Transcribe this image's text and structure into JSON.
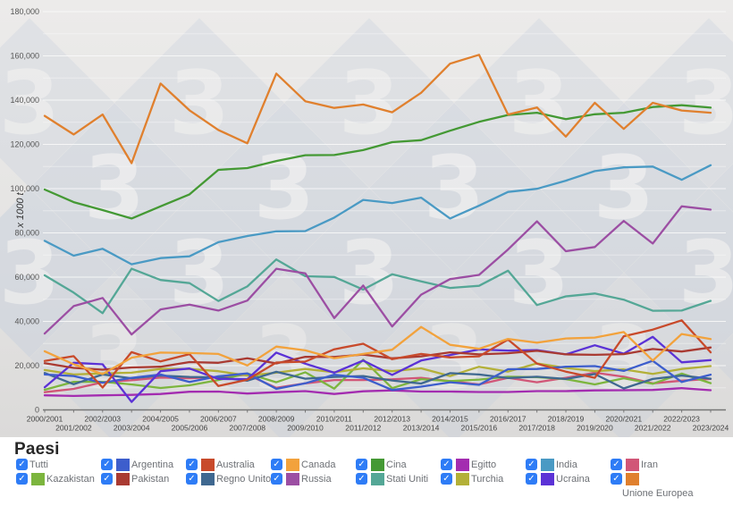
{
  "legend": {
    "title": "Paesi",
    "checkbox_color": "#2e7cf6",
    "checkmark": "✓",
    "items": [
      {
        "label": "Tutti",
        "checked": true,
        "has_swatch": false
      },
      {
        "label": "Kazakistan",
        "checked": true,
        "has_swatch": true
      },
      {
        "label": "Argentina",
        "checked": true,
        "has_swatch": true
      },
      {
        "label": "Pakistan",
        "checked": true,
        "has_swatch": true
      },
      {
        "label": "Australia",
        "checked": true,
        "has_swatch": true
      },
      {
        "label": "Regno Unito",
        "checked": true,
        "has_swatch": true
      },
      {
        "label": "Canada",
        "checked": true,
        "has_swatch": true
      },
      {
        "label": "Russia",
        "checked": true,
        "has_swatch": true
      },
      {
        "label": "Cina",
        "checked": true,
        "has_swatch": true
      },
      {
        "label": "Stati Uniti",
        "checked": true,
        "has_swatch": true
      },
      {
        "label": "Egitto",
        "checked": true,
        "has_swatch": true
      },
      {
        "label": "Turchia",
        "checked": true,
        "has_swatch": true
      },
      {
        "label": "India",
        "checked": true,
        "has_swatch": true
      },
      {
        "label": "Ucraina",
        "checked": true,
        "has_swatch": true
      },
      {
        "label": "Iran",
        "checked": true,
        "has_swatch": true
      },
      {
        "label": "Unione Europea",
        "checked": true,
        "has_swatch": true,
        "label_below": true
      }
    ]
  },
  "chart_data": {
    "type": "line",
    "title": "",
    "ylabel": "x 1000 t",
    "xlabel": "",
    "ylim": [
      0,
      180000
    ],
    "y_tick_step": 20000,
    "minor_grid_step": 10000,
    "grid": true,
    "legend_position": "bottom",
    "watermark_text": "3",
    "categories": [
      "2000/2001",
      "2001/2002",
      "2002/2003",
      "2003/2004",
      "2004/2005",
      "2005/2006",
      "2006/2007",
      "2007/2008",
      "2008/2009",
      "2009/2010",
      "2010/2011",
      "2011/2012",
      "2012/2013",
      "2013/2014",
      "2014/2015",
      "2015/2016",
      "2016/2017",
      "2017/2018",
      "2018/2019",
      "2019/2020",
      "2020/2021",
      "2021/2022",
      "2022/2023",
      "2023/2024"
    ],
    "series": [
      {
        "name": "Egitto",
        "color": "#a32cb0",
        "values": [
          6600,
          6300,
          6600,
          6800,
          7200,
          8200,
          8300,
          7400,
          8000,
          8500,
          7200,
          8400,
          8800,
          8300,
          8300,
          8100,
          8100,
          8500,
          8500,
          8800,
          8900,
          9000,
          9800,
          8900
        ]
      },
      {
        "name": "Iran",
        "color": "#d15677",
        "values": [
          8000,
          9500,
          12500,
          13400,
          14600,
          14300,
          14800,
          15900,
          10000,
          12000,
          13500,
          13500,
          13800,
          14500,
          13000,
          11500,
          14500,
          12500,
          14500,
          16800,
          15000,
          12000,
          13200,
          14000
        ]
      },
      {
        "name": "Kazakistan",
        "color": "#7cb53e",
        "values": [
          9100,
          12700,
          12700,
          11500,
          9900,
          11100,
          13500,
          16500,
          12500,
          17000,
          9600,
          22700,
          9800,
          13900,
          13000,
          13700,
          15000,
          14800,
          13900,
          11500,
          14300,
          11800,
          16400,
          12100
        ]
      },
      {
        "name": "Turchia",
        "color": "#b3b038",
        "values": [
          18000,
          16000,
          16500,
          16800,
          18500,
          18500,
          17500,
          15500,
          16800,
          18500,
          17000,
          18800,
          17500,
          18800,
          15300,
          19500,
          17300,
          21000,
          19000,
          17500,
          18300,
          16300,
          18500,
          19800
        ]
      },
      {
        "name": "Regno Unito",
        "color": "#3f6890",
        "values": [
          16700,
          11600,
          16000,
          14300,
          15500,
          14900,
          14700,
          13200,
          17200,
          14100,
          14900,
          15300,
          13300,
          11900,
          16600,
          16000,
          14400,
          15000,
          14000,
          16200,
          9700,
          14000,
          15500,
          14100
        ]
      },
      {
        "name": "Argentina",
        "color": "#3d5ecc",
        "values": [
          16000,
          15300,
          12300,
          14500,
          16000,
          12600,
          15200,
          16500,
          9500,
          12000,
          15900,
          14500,
          9000,
          10500,
          12500,
          11300,
          18400,
          18500,
          19500,
          19800,
          17600,
          22200,
          12600,
          15900
        ]
      },
      {
        "name": "Ucraina",
        "color": "#5b32d6",
        "values": [
          10200,
          21300,
          20600,
          3600,
          17500,
          18700,
          14000,
          13900,
          25900,
          20900,
          16800,
          22300,
          15800,
          22300,
          24800,
          27300,
          26800,
          27000,
          25100,
          29200,
          25400,
          33000,
          21500,
          22500
        ]
      },
      {
        "name": "Pakistan",
        "color": "#a93a32",
        "values": [
          21100,
          19000,
          18200,
          19200,
          19500,
          21600,
          21300,
          23300,
          21000,
          24000,
          23900,
          25000,
          23300,
          24200,
          26000,
          25100,
          25600,
          26700,
          25100,
          24900,
          25200,
          27500,
          26400,
          28200
        ]
      },
      {
        "name": "Australia",
        "color": "#c84a2b",
        "values": [
          22100,
          24300,
          10100,
          26100,
          21900,
          25200,
          10800,
          13600,
          21400,
          21800,
          27400,
          29900,
          22900,
          25300,
          23700,
          24200,
          31800,
          20900,
          17300,
          14500,
          33300,
          36300,
          40500,
          26000
        ]
      },
      {
        "name": "Canada",
        "color": "#f2a23c",
        "values": [
          26500,
          20600,
          16200,
          23600,
          25900,
          25700,
          25300,
          20100,
          28600,
          26900,
          23300,
          25300,
          27200,
          37500,
          29400,
          27600,
          32100,
          30400,
          32300,
          32700,
          35200,
          22300,
          34300,
          32000
        ]
      },
      {
        "name": "Stati Uniti",
        "color": "#54a796",
        "values": [
          60800,
          53000,
          43700,
          63800,
          58700,
          57300,
          49200,
          55800,
          68000,
          60400,
          60100,
          54400,
          61300,
          58100,
          55100,
          56100,
          62900,
          47400,
          51300,
          52600,
          49800,
          44800,
          44900,
          49300
        ]
      },
      {
        "name": "Russia",
        "color": "#9c4ea3",
        "values": [
          34500,
          46900,
          50600,
          34100,
          45400,
          47600,
          44900,
          49400,
          63800,
          61700,
          41500,
          56200,
          37700,
          52100,
          59100,
          61000,
          72500,
          85200,
          71700,
          73600,
          85400,
          75200,
          92000,
          90500
        ]
      },
      {
        "name": "India",
        "color": "#4a9ac4",
        "values": [
          76400,
          69700,
          72800,
          65800,
          68600,
          69400,
          75800,
          78600,
          80700,
          80800,
          86900,
          94900,
          93500,
          95900,
          86500,
          92300,
          98500,
          99900,
          103600,
          107900,
          109600,
          110000,
          104000,
          110600
        ]
      },
      {
        "name": "Cina",
        "color": "#449934",
        "values": [
          99600,
          93900,
          90300,
          86500,
          92000,
          97400,
          108500,
          109300,
          112500,
          115100,
          115200,
          117400,
          121000,
          121900,
          126200,
          130200,
          133300,
          134300,
          131400,
          133600,
          134300,
          136900,
          137700,
          136600
        ]
      },
      {
        "name": "Unione Europea",
        "color": "#e0802e",
        "values": [
          132900,
          124500,
          133500,
          111500,
          147500,
          135400,
          126500,
          120500,
          152000,
          139500,
          136500,
          138000,
          134500,
          143300,
          156500,
          160500,
          133500,
          136700,
          123500,
          138800,
          127000,
          138800,
          135300,
          134300
        ]
      }
    ]
  }
}
